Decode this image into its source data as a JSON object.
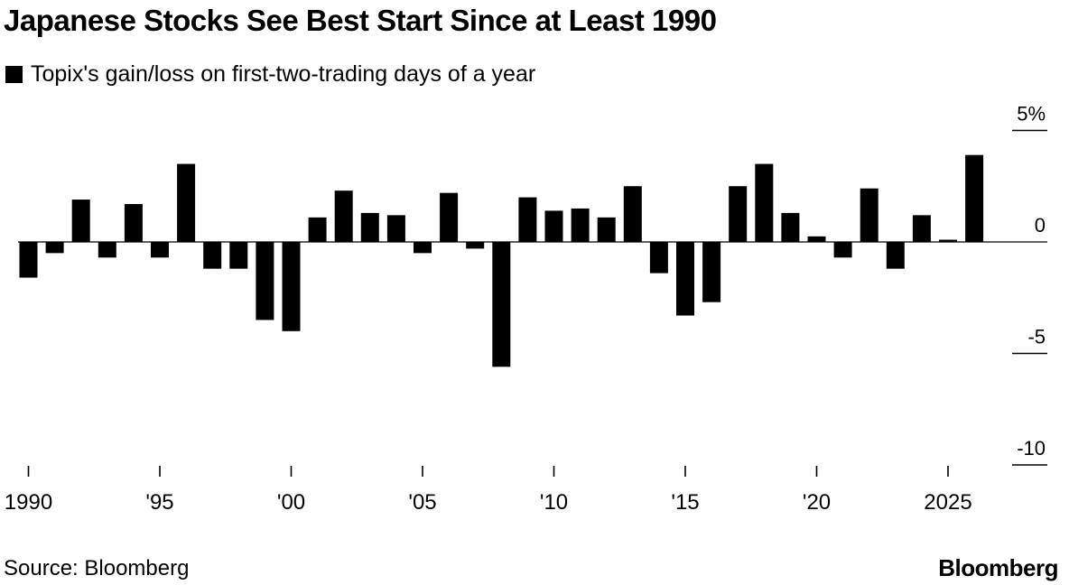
{
  "colors": {
    "bar": "#000000",
    "axis": "#000000",
    "background": "#ffffff"
  },
  "chart_data": {
    "type": "bar",
    "title": "Japanese Stocks See Best Start Since at Least 1990",
    "legend": [
      {
        "label": "Topix's gain/loss on first-two-trading days of a year",
        "marker": "square"
      }
    ],
    "categories": [
      1990,
      1991,
      1992,
      1993,
      1994,
      1995,
      1996,
      1997,
      1998,
      1999,
      2000,
      2001,
      2002,
      2003,
      2004,
      2005,
      2006,
      2007,
      2008,
      2009,
      2010,
      2011,
      2012,
      2013,
      2014,
      2015,
      2016,
      2017,
      2018,
      2019,
      2020,
      2021,
      2022,
      2023,
      2024,
      2025,
      2026
    ],
    "values": [
      -1.6,
      -0.5,
      1.9,
      -0.7,
      1.7,
      -0.7,
      3.5,
      -1.2,
      -1.2,
      -3.5,
      -4.0,
      1.1,
      2.3,
      1.3,
      1.2,
      -0.5,
      2.2,
      -0.3,
      -5.6,
      2.0,
      1.4,
      1.5,
      1.1,
      2.5,
      -1.4,
      -3.3,
      -2.7,
      2.5,
      3.5,
      1.3,
      0.25,
      -0.7,
      2.4,
      -1.2,
      1.2,
      0.1,
      3.9
    ],
    "x_tick_labels": [
      "1990",
      "'95",
      "'00",
      "'05",
      "'10",
      "'15",
      "'20",
      "2025"
    ],
    "y_tick_labels": [
      "5%",
      "0",
      "-5",
      "-10"
    ],
    "y_ticks": [
      5,
      0,
      -5,
      -10
    ],
    "ylim": [
      -10,
      5
    ],
    "y_axis_position": "right",
    "xlabel": "",
    "ylabel": "",
    "grid": false
  },
  "footer": {
    "source": "Source: Bloomberg",
    "brand": "Bloomberg"
  }
}
